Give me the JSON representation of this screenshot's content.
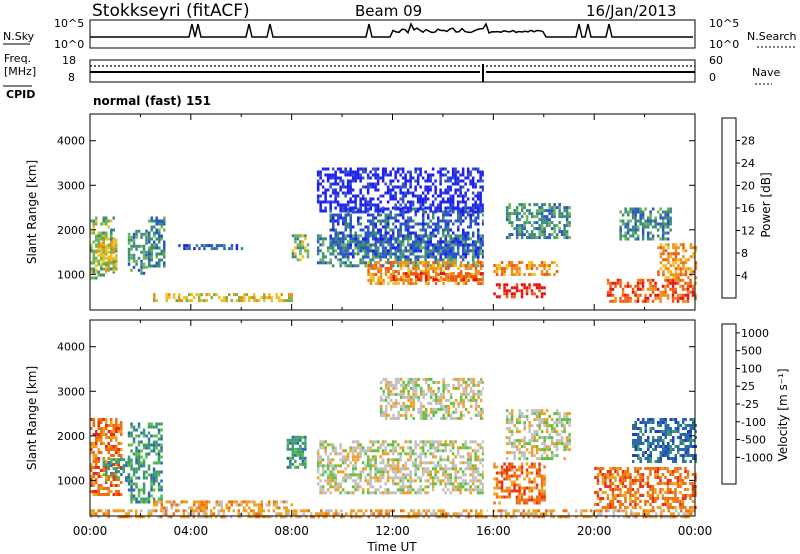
{
  "header": {
    "station": "Stokkseyri (fitACF)",
    "beam": "Beam 09",
    "date": "16/Jan/2013"
  },
  "panels": {
    "nsky_label": "N.Sky",
    "nsearch_label": "N.Search",
    "nsky_ticks_left": [
      "10^5",
      "10^0"
    ],
    "nsky_ticks_right": [
      "10^5",
      "10^0"
    ],
    "freq_label_1": "Freq.",
    "freq_label_2": "[MHz]",
    "freq_ticks": [
      "18",
      "8"
    ],
    "nave_label": "Nave",
    "nave_ticks": [
      "60",
      "0"
    ],
    "cpid_label": "CPID",
    "cpid_value": "normal (fast) 151"
  },
  "chart_data": [
    {
      "type": "heatmap",
      "name": "power",
      "ylabel": "Slant Range [km]",
      "y_ticks": [
        "1000",
        "2000",
        "3000",
        "4000"
      ],
      "ylim": [
        200,
        4600
      ],
      "xlim": [
        0,
        24
      ],
      "colorbar": {
        "label": "Power [dB]",
        "ticks": [
          "4",
          "8",
          "12",
          "16",
          "20",
          "24",
          "28"
        ],
        "colors": [
          "#1f1ff0",
          "#2c55c8",
          "#3a8c78",
          "#6ab45a",
          "#f0c020",
          "#f08c18",
          "#f05a0c",
          "#e81010"
        ]
      },
      "regions": [
        {
          "t0": 0.0,
          "t1": 1.0,
          "r0": 900,
          "r1": 2300,
          "level": 3
        },
        {
          "t0": 0.2,
          "t1": 1.0,
          "r0": 1100,
          "r1": 1800,
          "level": 4
        },
        {
          "t0": 1.5,
          "t1": 2.2,
          "r0": 1000,
          "r1": 2000,
          "level": 2
        },
        {
          "t0": 2.3,
          "t1": 2.9,
          "r0": 1200,
          "r1": 2300,
          "level": 2
        },
        {
          "t0": 2.5,
          "t1": 8.0,
          "r0": 400,
          "r1": 580,
          "level": 4
        },
        {
          "t0": 3.5,
          "t1": 6.0,
          "r0": 1550,
          "r1": 1680,
          "level": 1
        },
        {
          "t0": 8.0,
          "t1": 8.6,
          "r0": 1300,
          "r1": 1900,
          "level": 3
        },
        {
          "t0": 9.0,
          "t1": 15.6,
          "r0": 1200,
          "r1": 1900,
          "level": 2
        },
        {
          "t0": 9.5,
          "t1": 15.6,
          "r0": 1400,
          "r1": 2500,
          "level": 1
        },
        {
          "t0": 11.0,
          "t1": 15.6,
          "r0": 800,
          "r1": 1300,
          "level": 5
        },
        {
          "t0": 12.0,
          "t1": 15.6,
          "r0": 850,
          "r1": 1050,
          "level": 6
        },
        {
          "t0": 16.0,
          "t1": 18.0,
          "r0": 500,
          "r1": 800,
          "level": 7
        },
        {
          "t0": 16.0,
          "t1": 18.5,
          "r0": 1000,
          "r1": 1300,
          "level": 5
        },
        {
          "t0": 16.5,
          "t1": 19.0,
          "r0": 1800,
          "r1": 2600,
          "level": 2
        },
        {
          "t0": 20.5,
          "t1": 24.0,
          "r0": 400,
          "r1": 900,
          "level": 6
        },
        {
          "t0": 22.5,
          "t1": 24.0,
          "r0": 900,
          "r1": 1700,
          "level": 5
        },
        {
          "t0": 21.0,
          "t1": 23.0,
          "r0": 1800,
          "r1": 2500,
          "level": 2
        },
        {
          "t0": 9.0,
          "t1": 15.6,
          "r0": 2400,
          "r1": 3400,
          "level": 0
        }
      ]
    },
    {
      "type": "heatmap",
      "name": "velocity",
      "ylabel": "Slant Range [km]",
      "y_ticks": [
        "1000",
        "2000",
        "3000",
        "4000"
      ],
      "ylim": [
        200,
        4600
      ],
      "xlim": [
        0,
        24
      ],
      "xlabel": "Time UT",
      "x_ticks": [
        "00:00",
        "04:00",
        "08:00",
        "12:00",
        "16:00",
        "20:00",
        "00:00"
      ],
      "colorbar": {
        "label": "Velocity [m s⁻¹]",
        "ticks": [
          "1000",
          "500",
          "100",
          "25",
          "-25",
          "-100",
          "-500",
          "-1000"
        ],
        "colors": [
          "#2040c8",
          "#2a6aa8",
          "#3c9a6c",
          "#5cc040",
          "#c0c0c0",
          "#f0a020",
          "#f07010",
          "#e83010",
          "#e01010"
        ]
      },
      "regions": [
        {
          "t0": 0.0,
          "t1": 1.2,
          "r0": 700,
          "r1": 2400,
          "level": 6
        },
        {
          "t0": 0.5,
          "t1": 1.5,
          "r0": 1000,
          "r1": 1500,
          "level": 2
        },
        {
          "t0": 1.5,
          "t1": 2.8,
          "r0": 500,
          "r1": 2300,
          "level": 2
        },
        {
          "t0": 2.5,
          "t1": 8.0,
          "r0": 350,
          "r1": 550,
          "level": 5
        },
        {
          "t0": 7.8,
          "t1": 8.5,
          "r0": 1300,
          "r1": 2000,
          "level": 2
        },
        {
          "t0": 9.0,
          "t1": 15.6,
          "r0": 700,
          "r1": 1900,
          "level": 4
        },
        {
          "t0": 11.5,
          "t1": 15.6,
          "r0": 2400,
          "r1": 3300,
          "level": 4
        },
        {
          "t0": 16.0,
          "t1": 18.0,
          "r0": 500,
          "r1": 1400,
          "level": 6
        },
        {
          "t0": 16.5,
          "t1": 19.0,
          "r0": 1500,
          "r1": 2600,
          "level": 4
        },
        {
          "t0": 20.0,
          "t1": 24.0,
          "r0": 400,
          "r1": 1300,
          "level": 6
        },
        {
          "t0": 21.5,
          "t1": 24.0,
          "r0": 1400,
          "r1": 2400,
          "level": 1
        },
        {
          "t0": 0.0,
          "t1": 24.0,
          "r0": 200,
          "r1": 350,
          "level": 5
        }
      ]
    }
  ]
}
